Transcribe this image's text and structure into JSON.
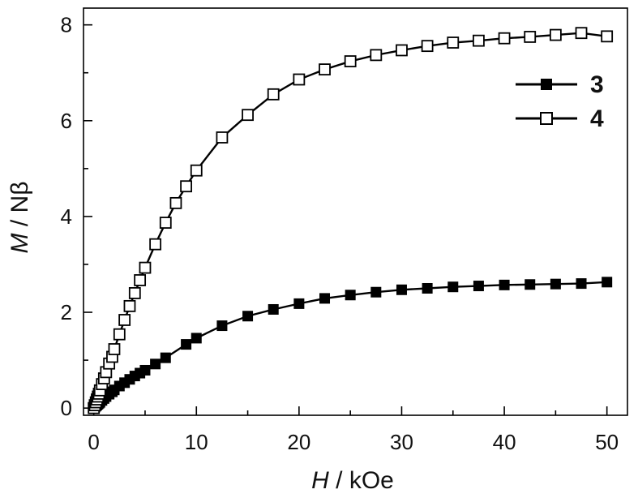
{
  "chart_data": {
    "type": "line",
    "xlabel_var": "H",
    "xlabel_unit": " / kOe",
    "ylabel_var": "M",
    "ylabel_unit": " / Nβ",
    "xlim": [
      -1,
      52
    ],
    "ylim": [
      -0.15,
      8.35
    ],
    "x_ticks": [
      0,
      10,
      20,
      30,
      40,
      50
    ],
    "y_ticks": [
      0,
      2,
      4,
      6,
      8
    ],
    "x_tick_labels": [
      "0",
      "10",
      "20",
      "30",
      "40",
      "50"
    ],
    "y_tick_labels": [
      "0",
      "2",
      "4",
      "6",
      "8"
    ],
    "legend_position": "top-right",
    "series": [
      {
        "name": "3",
        "marker": "filled-square",
        "color": "#000000",
        "x": [
          0.0,
          0.1,
          0.2,
          0.3,
          0.4,
          0.5,
          0.6,
          0.8,
          1.0,
          1.2,
          1.5,
          1.8,
          2.0,
          2.5,
          3.0,
          3.5,
          4.0,
          4.5,
          5.0,
          6.0,
          7.0,
          9.0,
          10.0,
          12.5,
          15.0,
          17.5,
          20.0,
          22.5,
          25.0,
          27.5,
          30.0,
          32.5,
          35.0,
          37.5,
          40.0,
          42.5,
          45.0,
          47.5,
          50.0
        ],
        "y": [
          0.0,
          0.02,
          0.04,
          0.06,
          0.08,
          0.1,
          0.12,
          0.16,
          0.2,
          0.24,
          0.29,
          0.34,
          0.38,
          0.46,
          0.53,
          0.6,
          0.67,
          0.73,
          0.79,
          0.92,
          1.05,
          1.33,
          1.46,
          1.72,
          1.92,
          2.06,
          2.18,
          2.29,
          2.36,
          2.42,
          2.47,
          2.5,
          2.53,
          2.55,
          2.57,
          2.58,
          2.59,
          2.6,
          2.63
        ]
      },
      {
        "name": "4",
        "marker": "open-square",
        "color": "#000000",
        "x": [
          0.0,
          0.1,
          0.2,
          0.3,
          0.4,
          0.5,
          0.6,
          0.8,
          1.0,
          1.2,
          1.5,
          1.8,
          2.0,
          2.5,
          3.0,
          3.5,
          4.0,
          4.5,
          5.0,
          6.0,
          7.0,
          8.0,
          9.0,
          10.0,
          12.5,
          15.0,
          17.5,
          20.0,
          22.5,
          25.0,
          27.5,
          30.0,
          32.5,
          35.0,
          37.5,
          40.0,
          42.5,
          45.0,
          47.5,
          50.0
        ],
        "y": [
          0.0,
          0.06,
          0.12,
          0.18,
          0.24,
          0.3,
          0.37,
          0.5,
          0.62,
          0.75,
          0.93,
          1.07,
          1.23,
          1.54,
          1.84,
          2.13,
          2.4,
          2.67,
          2.93,
          3.42,
          3.87,
          4.28,
          4.63,
          4.96,
          5.65,
          6.12,
          6.55,
          6.86,
          7.07,
          7.24,
          7.37,
          7.47,
          7.56,
          7.63,
          7.67,
          7.72,
          7.75,
          7.79,
          7.83,
          7.76
        ]
      }
    ]
  }
}
